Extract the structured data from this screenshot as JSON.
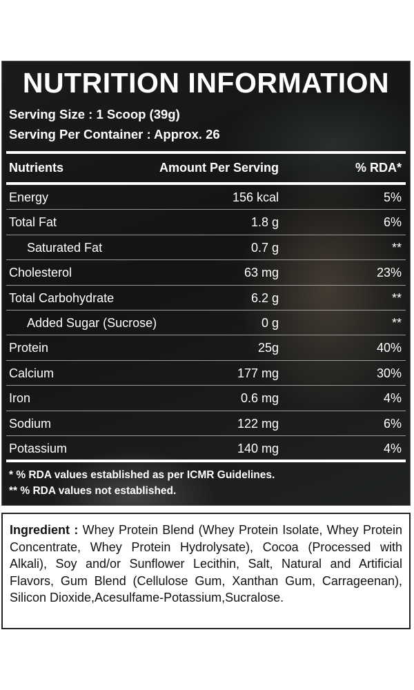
{
  "title": "NUTRITION INFORMATION",
  "serving_size": "Serving Size : 1 Scoop (39g)",
  "serving_per_container": "Serving Per Container : Approx. 26",
  "table_headers": {
    "nutrients": "Nutrients",
    "amount": "Amount Per Serving",
    "rda": "% RDA*"
  },
  "rows": [
    {
      "name": "Energy",
      "amount": "156 kcal",
      "rda": "5%",
      "indent": false
    },
    {
      "name": "Total Fat",
      "amount": "1.8 g",
      "rda": "6%",
      "indent": false
    },
    {
      "name": "Saturated Fat",
      "amount": "0.7 g",
      "rda": "**",
      "indent": true
    },
    {
      "name": "Cholesterol",
      "amount": "63 mg",
      "rda": "23%",
      "indent": false
    },
    {
      "name": "Total Carbohydrate",
      "amount": "6.2 g",
      "rda": "**",
      "indent": false
    },
    {
      "name": "Added Sugar (Sucrose)",
      "amount": "0 g",
      "rda": "**",
      "indent": true
    },
    {
      "name": "Protein",
      "amount": "25g",
      "rda": "40%",
      "indent": false
    },
    {
      "name": "Calcium",
      "amount": "177 mg",
      "rda": "30%",
      "indent": false
    },
    {
      "name": "Iron",
      "amount": "0.6 mg",
      "rda": "4%",
      "indent": false
    },
    {
      "name": "Sodium",
      "amount": "122 mg",
      "rda": "6%",
      "indent": false
    },
    {
      "name": "Potassium",
      "amount": "140 mg",
      "rda": "4%",
      "indent": false
    }
  ],
  "footnotes": [
    "* % RDA values established as per ICMR Guidelines.",
    "** % RDA values not established."
  ],
  "ingredients": {
    "label": "Ingredient :",
    "text": "Whey Protein Blend (Whey Protein Isolate, Whey Protein Concentrate, Whey Protein Hydrolysate), Cocoa (Processed with Alkali), Soy and/or Sunflower Lecithin, Salt, Natural and Artificial Flavors, Gum Blend (Cellulose Gum, Xanthan Gum, Carrageenan), Silicon Dioxide,Acesulfame-Potassium,Sucralose."
  }
}
